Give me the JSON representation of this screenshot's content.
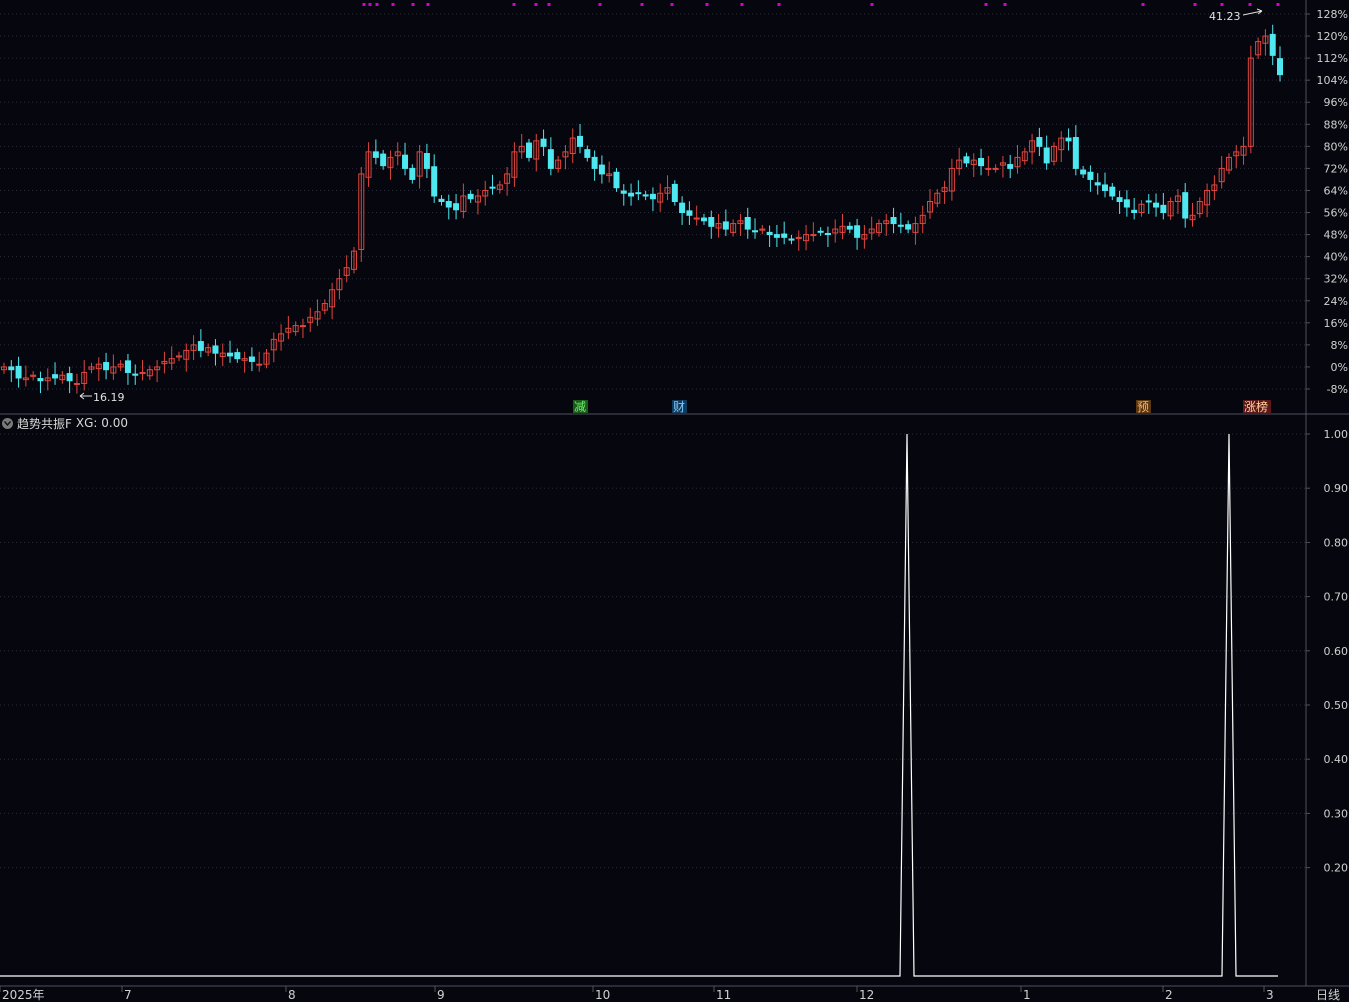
{
  "indicator": {
    "name": "趋势共振F",
    "xg_label": "XG: 0.00"
  },
  "colors": {
    "background": "#06060e",
    "up": "#e0463e",
    "down": "#4fe8f0",
    "marker": "#d400d4",
    "grid": "#2c2c3a",
    "axis": "#505060",
    "line": "#ffffff"
  },
  "chart_data": [
    {
      "type": "candlestick",
      "title": "",
      "y_axis": {
        "scale": "percent",
        "ticks": [
          "128%",
          "120%",
          "112%",
          "104%",
          "96%",
          "88%",
          "80%",
          "72%",
          "64%",
          "56%",
          "48%",
          "40%",
          "32%",
          "24%",
          "16%",
          "8%",
          "0%",
          "-8%"
        ],
        "tick_values": [
          128,
          120,
          112,
          104,
          96,
          88,
          80,
          72,
          64,
          56,
          48,
          40,
          32,
          24,
          16,
          8,
          0,
          -8
        ],
        "range": [
          -16,
          136
        ]
      },
      "x_axis": {
        "labels": [
          "2025年",
          "7",
          "8",
          "9",
          "10",
          "11",
          "12",
          "1",
          "2",
          "3"
        ]
      },
      "period_label": "日线",
      "annotations": {
        "low": "16.19",
        "high": "41.23",
        "event_tags": [
          "减",
          "财",
          "预",
          "涨榜"
        ]
      },
      "marker_count": 27,
      "grid": true
    },
    {
      "type": "line",
      "series_name": "XG",
      "y_axis": {
        "ticks": [
          "1.00",
          "0.90",
          "0.80",
          "0.70",
          "0.60",
          "0.50",
          "0.40",
          "0.30",
          "0.20"
        ],
        "tick_values": [
          1.0,
          0.9,
          0.8,
          0.7,
          0.6,
          0.5,
          0.4,
          0.3,
          0.2
        ],
        "range": [
          0,
          1
        ]
      },
      "values_note_spikes_at_candle_index": [],
      "spikes": [
        {
          "near": "12",
          "value": 1.0
        },
        {
          "near": "3",
          "value": 1.0
        }
      ],
      "baseline": 0.0,
      "grid": true
    }
  ]
}
